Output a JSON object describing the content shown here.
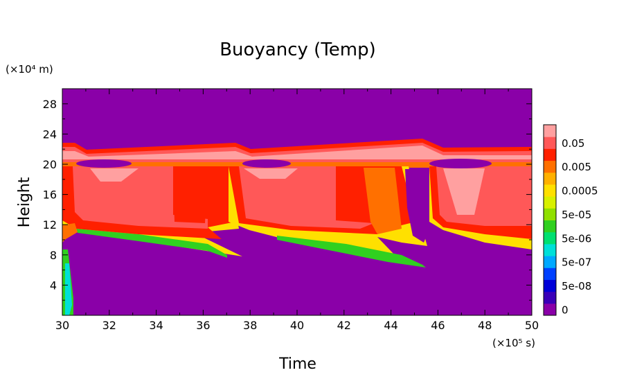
{
  "chart_data": {
    "type": "heatmap",
    "title": "Buoyancy (Temp)",
    "xlabel": "Time",
    "ylabel": "Height",
    "x_unit": "(×10⁵ s)",
    "y_unit": "(×10⁴ m)",
    "xlim": [
      30,
      50
    ],
    "ylim": [
      0,
      30
    ],
    "x_ticks": [
      "30",
      "32",
      "34",
      "36",
      "38",
      "40",
      "42",
      "44",
      "46",
      "48",
      "50"
    ],
    "y_ticks": [
      "4",
      "8",
      "12",
      "16",
      "20",
      "24",
      "28"
    ],
    "grid": false,
    "colorbar": {
      "position": "right",
      "levels": [
        "0",
        "",
        "5e-08",
        "",
        "5e-07",
        "",
        "5e-06",
        "",
        "5e-05",
        "",
        "0.0005",
        "",
        "0.005",
        "",
        "0.05",
        ""
      ],
      "colors": [
        "#8a00a8",
        "#3a00b8",
        "#0000d8",
        "#0040ff",
        "#00a8ff",
        "#00e0d8",
        "#00e070",
        "#30d020",
        "#90e000",
        "#d8f000",
        "#ffe000",
        "#ffb000",
        "#ff7000",
        "#ff2000",
        "#ff5858",
        "#ffa0a0"
      ],
      "labels": [
        "0",
        "5e-08",
        "5e-07",
        "5e-06",
        "5e-05",
        "0.0005",
        "0.005",
        "0.05"
      ]
    },
    "background_color": "#8a00a8"
  }
}
